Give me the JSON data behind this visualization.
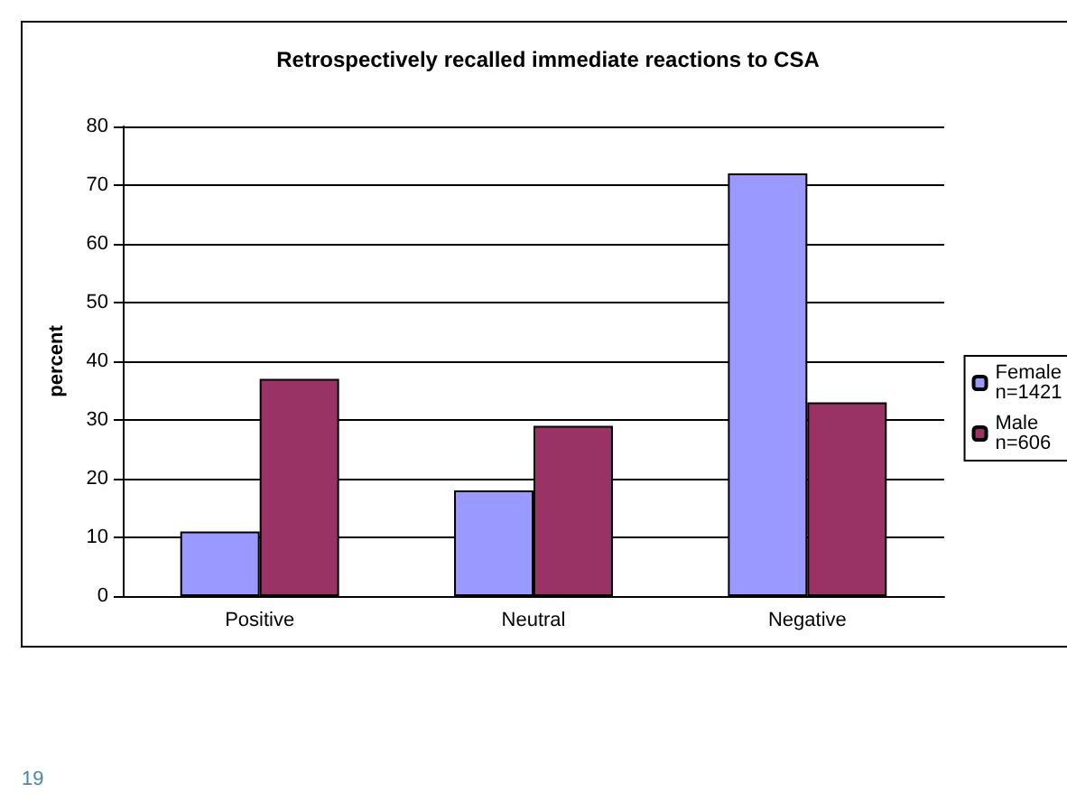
{
  "chart_data": {
    "type": "bar",
    "title": "Retrospectively recalled immediate reactions to CSA",
    "ylabel": "percent",
    "categories": [
      "Positive",
      "Neutral",
      "Negative"
    ],
    "series": [
      {
        "name": "Female n=1421",
        "color": "#9999ff",
        "values": [
          11,
          18,
          72
        ]
      },
      {
        "name": "Male n=606",
        "color": "#993366",
        "values": [
          37,
          29,
          33
        ]
      }
    ],
    "ylim": [
      0,
      80
    ],
    "yticks": [
      0,
      10,
      20,
      30,
      40,
      50,
      60,
      70,
      80
    ],
    "grid": "y",
    "legend": "right",
    "annotations": [
      "19"
    ]
  }
}
